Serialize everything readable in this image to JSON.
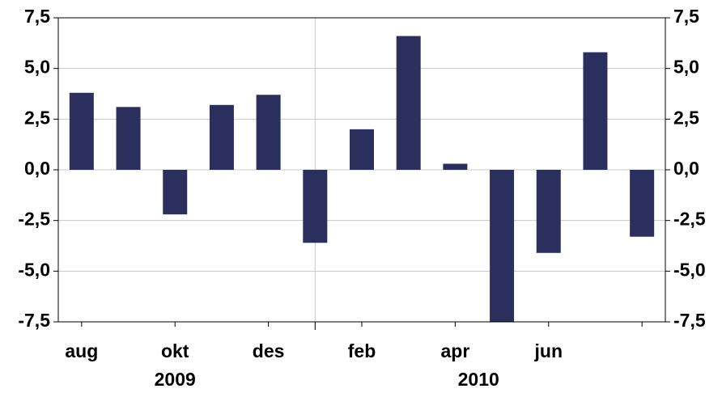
{
  "chart_data": {
    "type": "bar",
    "categories": [
      "aug",
      null,
      "okt",
      null,
      "des",
      null,
      "feb",
      null,
      "apr",
      null,
      "jun",
      null,
      null
    ],
    "values": [
      3.8,
      3.1,
      -2.2,
      3.2,
      3.7,
      -3.6,
      2.0,
      6.6,
      0.3,
      -7.5,
      -4.1,
      5.8,
      -3.3
    ],
    "color": "#2b2f5e",
    "group_labels": [
      "2009",
      "2010"
    ],
    "ylim": [
      -7.5,
      7.5
    ],
    "yticks": [
      {
        "value": -7.5,
        "label": "-7,5"
      },
      {
        "value": -5,
        "label": "-5,0"
      },
      {
        "value": -2.5,
        "label": "-2,5"
      },
      {
        "value": 0,
        "label": "0,0"
      },
      {
        "value": 2.5,
        "label": "2,5"
      },
      {
        "value": 5,
        "label": "5,0"
      },
      {
        "value": 7.5,
        "label": "7,5"
      }
    ],
    "grid": true
  }
}
